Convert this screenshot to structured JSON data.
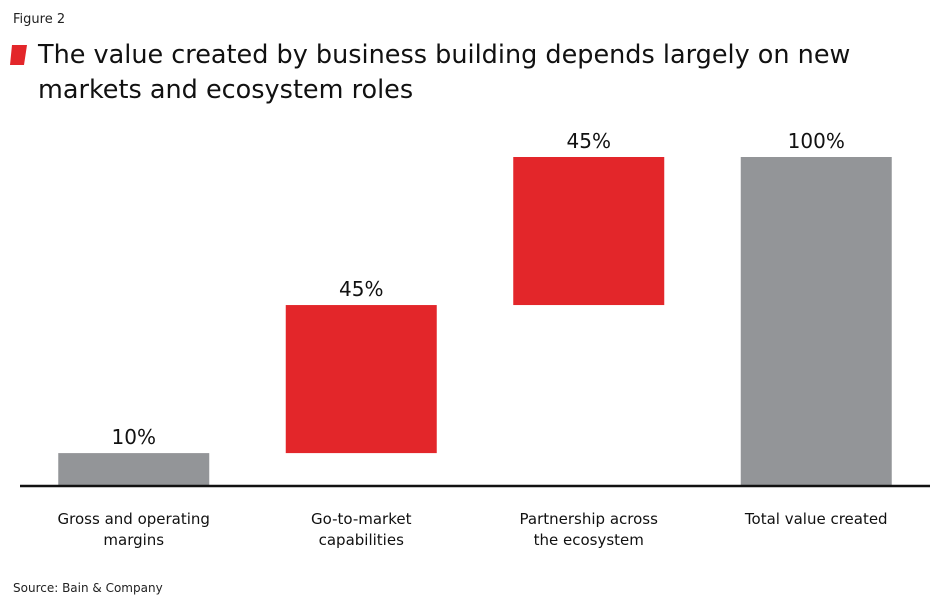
{
  "figure_label": "Figure 2",
  "title": "The value created by business building depends largely on new markets and ecosystem roles",
  "source": "Source: Bain & Company",
  "colors": {
    "accent": "#e3262a",
    "total": "#939598",
    "axis": "#111111",
    "text": "#111111"
  },
  "chart_data": {
    "type": "bar",
    "subtype": "waterfall",
    "categories": [
      [
        "Gross and operating",
        "margins"
      ],
      [
        "Go-to-market",
        "capabilities"
      ],
      [
        "Partnership across",
        "the ecosystem"
      ],
      [
        "Total value created"
      ]
    ],
    "values": [
      10,
      45,
      45,
      100
    ],
    "data_labels": [
      "10%",
      "45%",
      "45%",
      "100%"
    ],
    "bar_kind": [
      "total",
      "increment",
      "increment",
      "total"
    ],
    "ylim": [
      0,
      100
    ],
    "grid": false,
    "legend": "none",
    "xlabel": "",
    "ylabel": ""
  }
}
